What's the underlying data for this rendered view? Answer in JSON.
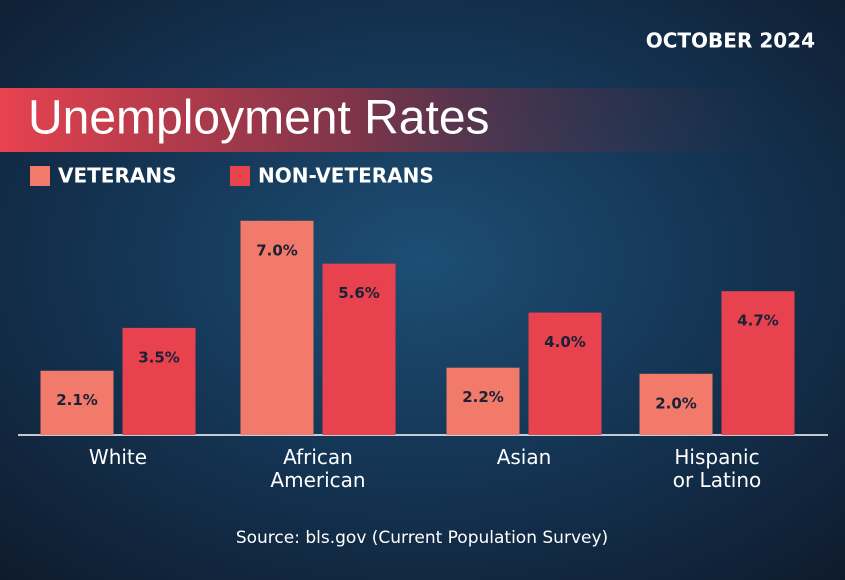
{
  "chart_data": {
    "type": "bar",
    "date": "OCTOBER 2024",
    "title": "Unemployment Rates",
    "categories": [
      "White",
      "African American",
      "Asian",
      "Hispanic or Latino"
    ],
    "series": [
      {
        "name": "VETERANS",
        "color": "#f27a6b",
        "values": [
          2.1,
          7.0,
          2.2,
          2.0
        ],
        "value_labels": [
          "2.1%",
          "7.0%",
          "2.2%",
          "2.0%"
        ]
      },
      {
        "name": "NON-VETERANS",
        "color": "#e8424f",
        "values": [
          3.5,
          5.6,
          4.0,
          4.7
        ],
        "value_labels": [
          "3.5%",
          "5.6%",
          "4.0%",
          "4.7%"
        ]
      }
    ],
    "source": "Source: bls.gov (Current Population Survey)"
  }
}
